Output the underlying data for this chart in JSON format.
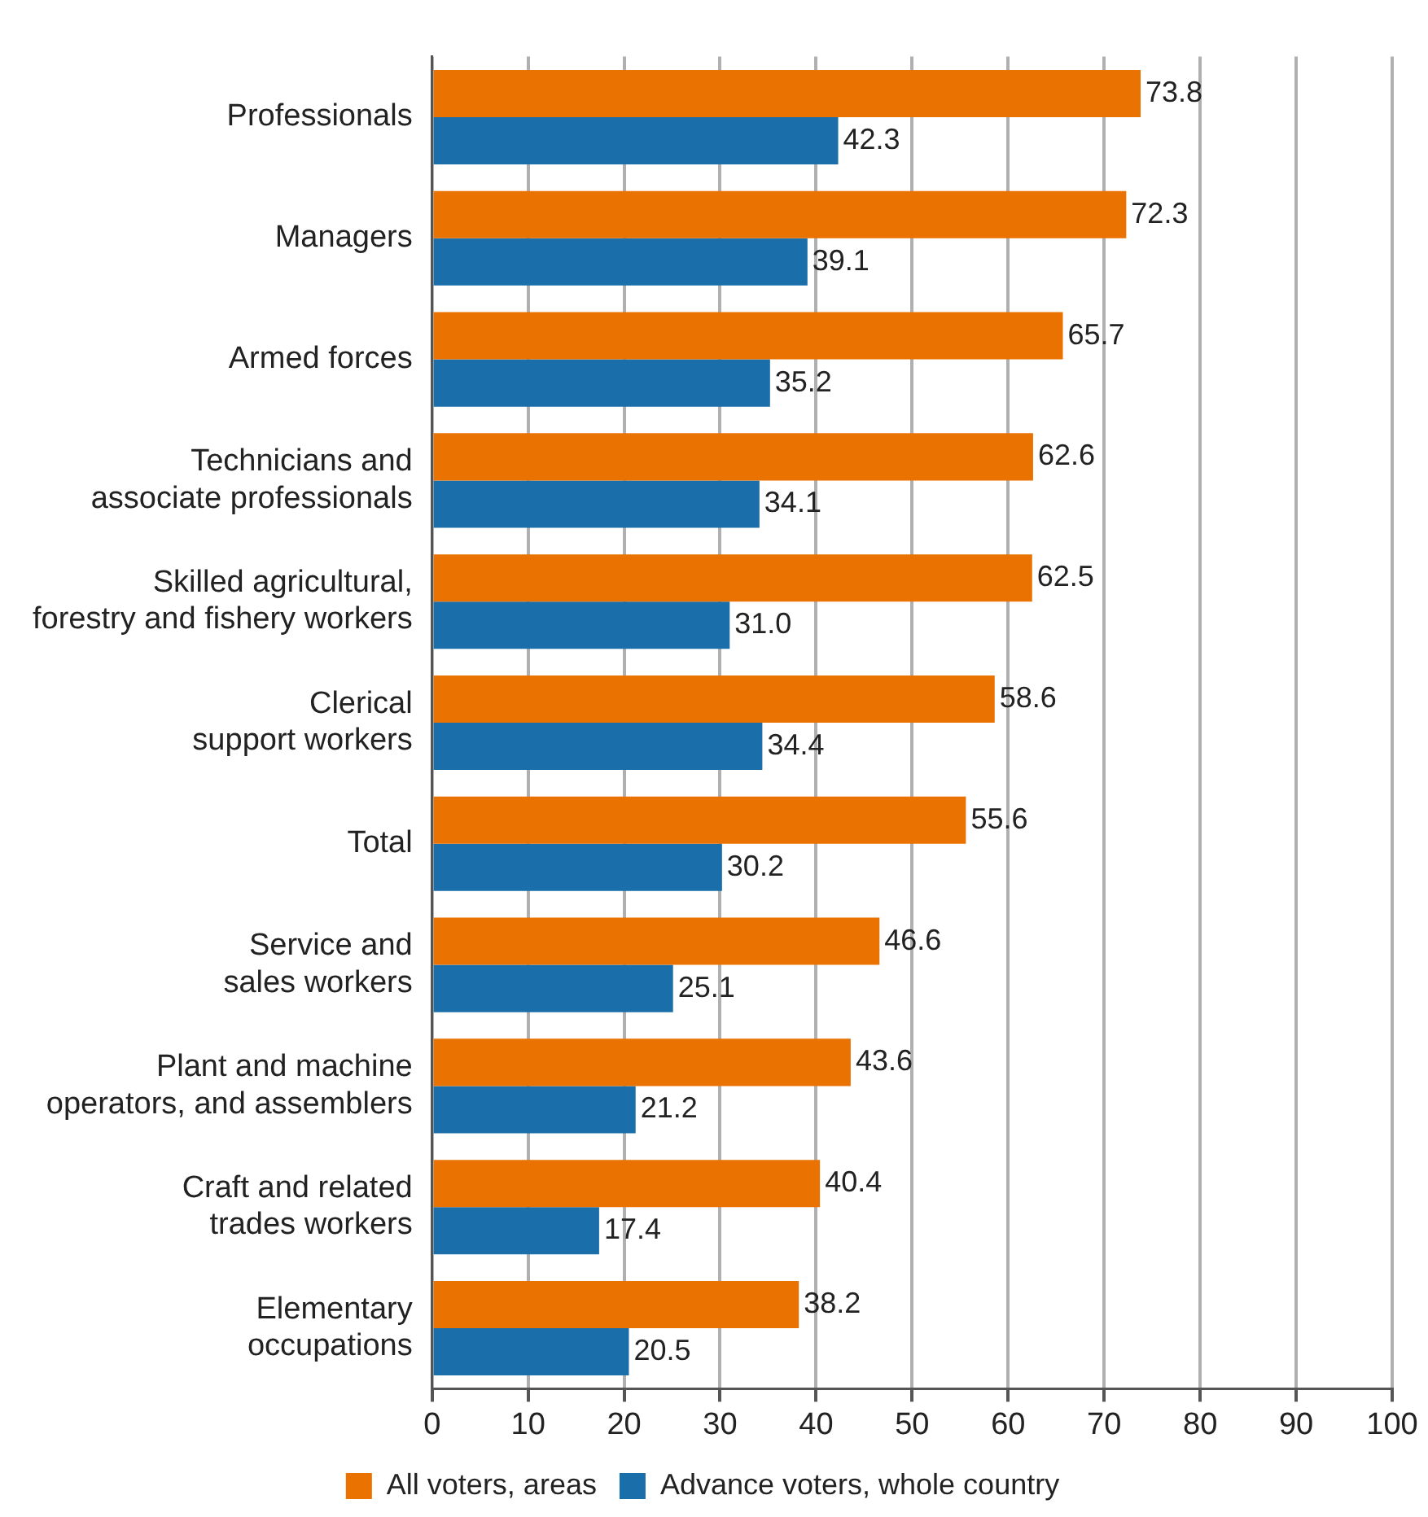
{
  "chart_data": {
    "type": "bar",
    "orientation": "horizontal",
    "categories": [
      "Professionals",
      "Managers",
      "Armed forces",
      "Technicians and\nassociate professionals",
      "Skilled agricultural,\nforestry and fishery workers",
      "Clerical\nsupport workers",
      "Total",
      "Service and\nsales workers",
      "Plant and machine\noperators, and assemblers",
      "Craft and related\ntrades workers",
      "Elementary\noccupations"
    ],
    "series": [
      {
        "name": "All voters, areas",
        "color": "#ea7200",
        "values": [
          73.8,
          72.3,
          65.7,
          62.6,
          62.5,
          58.6,
          55.6,
          46.6,
          43.6,
          40.4,
          38.2
        ],
        "value_labels": [
          "73.8",
          "72.3",
          "65.7",
          "62.6",
          "62.5",
          "58.6",
          "55.6",
          "46.6",
          "43.6",
          "40.4",
          "38.2"
        ]
      },
      {
        "name": "Advance voters, whole country",
        "color": "#1a6eaa",
        "values": [
          42.3,
          39.1,
          35.2,
          34.1,
          31.0,
          34.4,
          30.2,
          25.1,
          21.2,
          17.4,
          20.5
        ],
        "value_labels": [
          "42.3",
          "39.1",
          "35.2",
          "34.1",
          "31.0",
          "34.4",
          "30.2",
          "25.1",
          "21.2",
          "17.4",
          "20.5"
        ]
      }
    ],
    "xlim": [
      0,
      100
    ],
    "xticks": [
      0,
      10,
      20,
      30,
      40,
      50,
      60,
      70,
      80,
      90,
      100
    ],
    "grid": "x",
    "legend": "bottom"
  }
}
